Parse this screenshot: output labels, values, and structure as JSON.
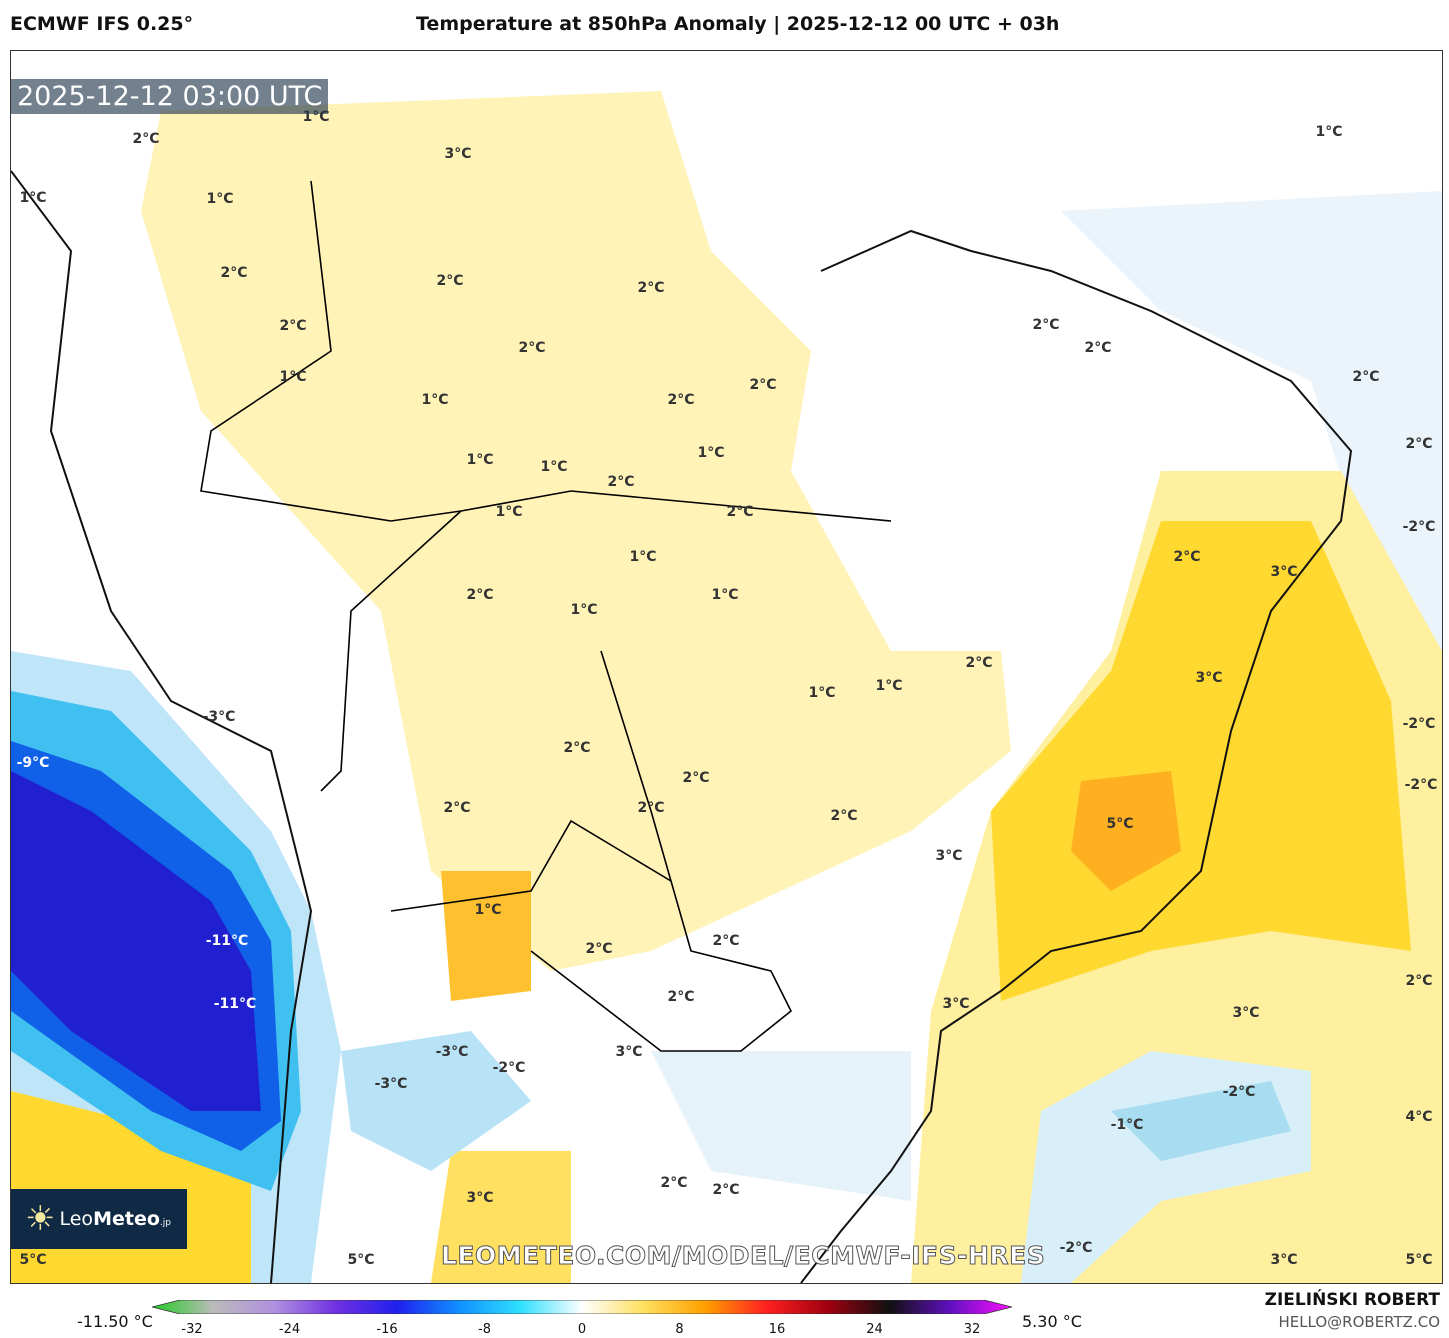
{
  "header": {
    "model": "ECMWF IFS 0.25°",
    "title": "Temperature at 850hPa Anomaly | 2025-12-12 00 UTC + 03h"
  },
  "map": {
    "valid_time": "2025-12-12 03:00 UTC",
    "watermark_url": "LEOMETEO.COM/MODEL/ECMWF-IFS-HRES",
    "logo": {
      "name_light": "Leo",
      "name_bold": "Meteo",
      "suffix": ".jp"
    },
    "contour_labels": [
      "2°C",
      "3°C",
      "1°C",
      "1°C",
      "1°C",
      "2°C",
      "2°C",
      "2°C",
      "2°C",
      "2°C",
      "1°C",
      "1°C",
      "2°C",
      "2°C",
      "1°C",
      "1°C",
      "2°C",
      "1°C",
      "1°C",
      "2°C",
      "1°C",
      "1°C",
      "2°C",
      "1°C",
      "2°C",
      "2°C",
      "2°C",
      "2°C",
      "1°C",
      "-2°C",
      "2°C",
      "3°C",
      "3°C",
      "2°C",
      "1°C",
      "1°C",
      "-3°C",
      "-9°C",
      "2°C",
      "2°C",
      "2°C",
      "2°C",
      "2°C",
      "5°C",
      "3°C",
      "-2°C",
      "-2°C",
      "-11°C",
      "-11°C",
      "1°C",
      "2°C",
      "2°C",
      "2°C",
      "3°C",
      "2°C",
      "3°C",
      "-3°C",
      "3°C",
      "-2°C",
      "-3°C",
      "-2°C",
      "-1°C",
      "4°C",
      "3°C",
      "2°C",
      "2°C",
      "-2°C",
      "5°C",
      "5°C",
      "3°C",
      "5°C"
    ]
  },
  "colorbar": {
    "min_label": "-11.50 °C",
    "max_label": "5.30 °C",
    "ticks": [
      "-32",
      "-24",
      "-16",
      "-8",
      "0",
      "8",
      "16",
      "24",
      "32"
    ],
    "colors": [
      "#22cc22",
      "#bbbbbb",
      "#b090e0",
      "#7030e0",
      "#2020ee",
      "#1090ff",
      "#30e0ff",
      "#ffffff",
      "#ffe060",
      "#ffa000",
      "#ff2020",
      "#a00010",
      "#101010",
      "#6010c0",
      "#ff10ff"
    ]
  },
  "footer": {
    "author": "ZIELIŃSKI ROBERT",
    "email": "HELLO@ROBERTZ.CO"
  }
}
